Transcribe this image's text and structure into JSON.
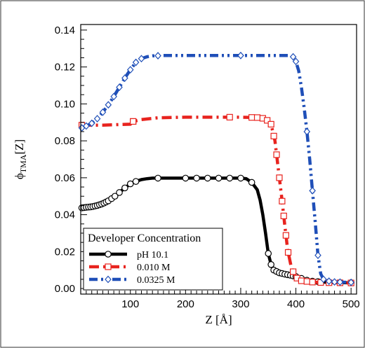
{
  "chart_data": {
    "type": "line",
    "title": "",
    "xlabel": "Z [Å]",
    "ylabel_main": "ϕ",
    "ylabel_sub": "TMA",
    "ylabel_suffix": "[Z]",
    "xlim": [
      10,
      510
    ],
    "ylim": [
      -0.003,
      0.143
    ],
    "xticks": [
      100,
      200,
      300,
      400,
      500
    ],
    "yticks": [
      0.0,
      0.02,
      0.04,
      0.06,
      0.08,
      0.1,
      0.12,
      0.14
    ],
    "ytick_labels": [
      "0.00",
      "0.02",
      "0.04",
      "0.06",
      "0.08",
      "0.10",
      "0.12",
      "0.14"
    ],
    "grid": false,
    "legend": {
      "title": "Developer Concentration",
      "placement": "bottom-left"
    },
    "series": [
      {
        "name": "pH 10.1",
        "color": "#000000",
        "marker": "circle",
        "dash": "solid",
        "points": [
          [
            12,
            0.0437
          ],
          [
            20,
            0.044
          ],
          [
            30,
            0.0443
          ],
          [
            40,
            0.045
          ],
          [
            50,
            0.046
          ],
          [
            60,
            0.0475
          ],
          [
            70,
            0.0495
          ],
          [
            80,
            0.052
          ],
          [
            90,
            0.0545
          ],
          [
            100,
            0.0567
          ],
          [
            110,
            0.058
          ],
          [
            120,
            0.059
          ],
          [
            130,
            0.0595
          ],
          [
            140,
            0.0598
          ],
          [
            160,
            0.0598
          ],
          [
            180,
            0.0598
          ],
          [
            200,
            0.0598
          ],
          [
            220,
            0.0598
          ],
          [
            240,
            0.0598
          ],
          [
            260,
            0.0598
          ],
          [
            280,
            0.0598
          ],
          [
            300,
            0.0598
          ],
          [
            310,
            0.0595
          ],
          [
            320,
            0.0575
          ],
          [
            330,
            0.0535
          ],
          [
            335,
            0.048
          ],
          [
            340,
            0.04
          ],
          [
            345,
            0.03
          ],
          [
            350,
            0.019
          ],
          [
            355,
            0.013
          ],
          [
            360,
            0.01
          ],
          [
            370,
            0.0085
          ],
          [
            380,
            0.0078
          ],
          [
            390,
            0.0072
          ],
          [
            400,
            0.0065
          ],
          [
            410,
            0.0055
          ],
          [
            420,
            0.0045
          ],
          [
            430,
            0.004
          ],
          [
            450,
            0.0035
          ],
          [
            470,
            0.0033
          ],
          [
            490,
            0.0032
          ],
          [
            505,
            0.0032
          ]
        ],
        "marker_x": [
          12,
          16,
          20,
          24,
          28,
          32,
          36,
          40,
          44,
          48,
          52,
          56,
          60,
          66,
          72,
          80,
          90,
          100,
          110,
          150,
          200,
          220,
          240,
          260,
          280,
          300,
          320,
          350,
          355,
          360,
          365,
          370,
          375,
          380,
          385,
          390,
          395,
          400,
          410,
          420,
          430,
          440,
          460,
          480,
          500
        ]
      },
      {
        "name": "0.010 M",
        "color": "#e8231e",
        "marker": "square",
        "dash": "dashdot",
        "points": [
          [
            12,
            0.0885
          ],
          [
            20,
            0.0885
          ],
          [
            50,
            0.0885
          ],
          [
            80,
            0.0888
          ],
          [
            100,
            0.089
          ],
          [
            105,
            0.0905
          ],
          [
            120,
            0.0915
          ],
          [
            150,
            0.0925
          ],
          [
            200,
            0.0928
          ],
          [
            250,
            0.0928
          ],
          [
            300,
            0.0928
          ],
          [
            330,
            0.0926
          ],
          [
            345,
            0.092
          ],
          [
            355,
            0.089
          ],
          [
            362,
            0.08
          ],
          [
            368,
            0.065
          ],
          [
            374,
            0.05
          ],
          [
            380,
            0.034
          ],
          [
            385,
            0.021
          ],
          [
            392,
            0.011
          ],
          [
            400,
            0.006
          ],
          [
            410,
            0.0042
          ],
          [
            430,
            0.0035
          ],
          [
            450,
            0.0032
          ],
          [
            480,
            0.0031
          ],
          [
            505,
            0.003
          ]
        ],
        "marker_x": [
          12,
          105,
          105,
          280,
          320,
          330,
          340,
          348,
          355,
          360,
          365,
          370,
          375,
          378,
          382,
          386,
          395,
          402,
          410,
          420,
          430,
          445,
          460,
          480,
          500
        ]
      },
      {
        "name": "0.0325 M",
        "color": "#1f4fb8",
        "marker": "diamond",
        "dash": "dashdotdot",
        "points": [
          [
            12,
            0.087
          ],
          [
            20,
            0.088
          ],
          [
            30,
            0.0895
          ],
          [
            40,
            0.092
          ],
          [
            50,
            0.0955
          ],
          [
            60,
            0.0995
          ],
          [
            70,
            0.104
          ],
          [
            80,
            0.109
          ],
          [
            90,
            0.114
          ],
          [
            100,
            0.1185
          ],
          [
            110,
            0.1225
          ],
          [
            120,
            0.1245
          ],
          [
            130,
            0.1255
          ],
          [
            140,
            0.126
          ],
          [
            160,
            0.1262
          ],
          [
            200,
            0.1262
          ],
          [
            250,
            0.1262
          ],
          [
            300,
            0.1262
          ],
          [
            350,
            0.1262
          ],
          [
            390,
            0.1262
          ],
          [
            395,
            0.1255
          ],
          [
            400,
            0.123
          ],
          [
            405,
            0.118
          ],
          [
            410,
            0.109
          ],
          [
            415,
            0.098
          ],
          [
            420,
            0.085
          ],
          [
            425,
            0.07
          ],
          [
            430,
            0.053
          ],
          [
            435,
            0.036
          ],
          [
            440,
            0.018
          ],
          [
            445,
            0.008
          ],
          [
            450,
            0.005
          ],
          [
            460,
            0.004
          ],
          [
            470,
            0.0036
          ],
          [
            490,
            0.0034
          ],
          [
            505,
            0.0033
          ]
        ],
        "marker_x": [
          12,
          20,
          30,
          40,
          50,
          60,
          70,
          80,
          90,
          100,
          110,
          120,
          150,
          300,
          395,
          400,
          420,
          430,
          440,
          450,
          460,
          470,
          480,
          500
        ]
      }
    ]
  }
}
